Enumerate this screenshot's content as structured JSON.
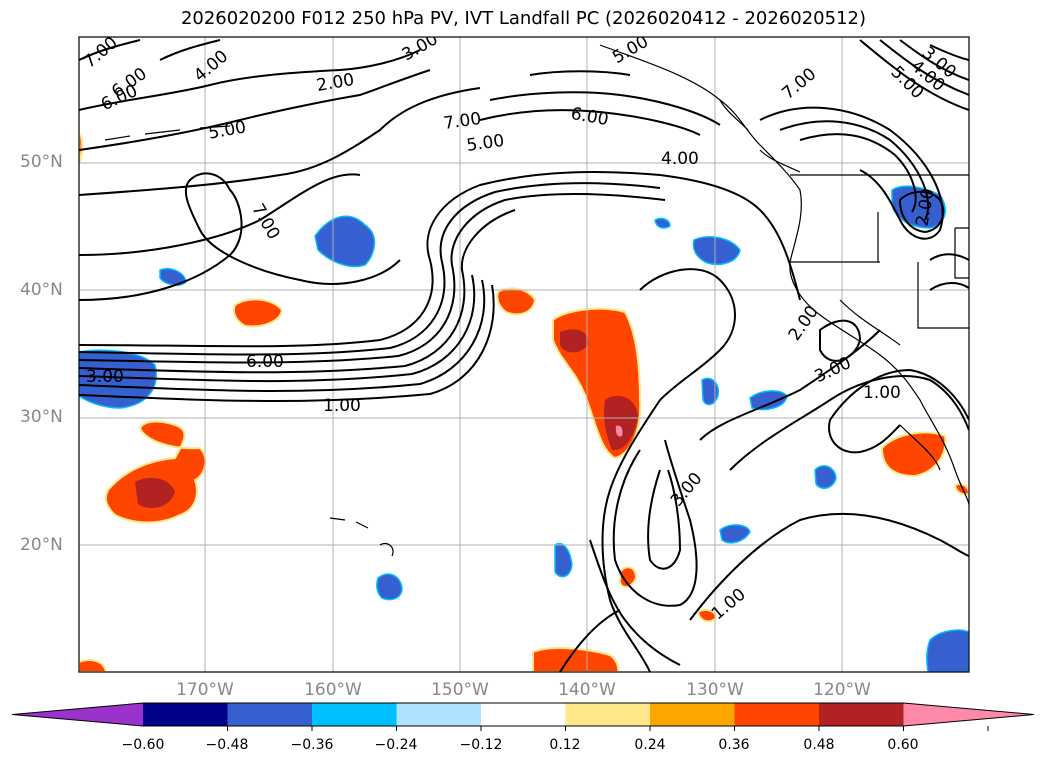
{
  "title": "2026020200 F012 250 hPa PV, IVT Landfall PC (2026020412 - 2026020512)",
  "lat_labels": [
    "50°N",
    "40°N",
    "30°N",
    "20°N"
  ],
  "lon_labels": [
    "170°W",
    "160°W",
    "150°W",
    "140°W",
    "130°W",
    "120°W"
  ],
  "contour_labels": [
    "7.00",
    "6.00",
    "4.00",
    "3.00",
    "2.00",
    "5.00",
    "7.00",
    "5.00",
    "6.00",
    "4.00",
    "7.00",
    "5.00",
    "4.00",
    "3.00",
    "5.00",
    "2.00",
    "6.00",
    "7.00",
    "6.00",
    "3.00",
    "1.00",
    "2.00",
    "3.00",
    "1.00",
    "3.00",
    "1.00"
  ],
  "colorbar": {
    "tick_labels": [
      "−0.60",
      "−0.48",
      "−0.36",
      "−0.24",
      "−0.12",
      "0.12",
      "0.24",
      "0.36",
      "0.48",
      "0.60"
    ],
    "colors": [
      "#9933cc",
      "#00008b",
      "#3660d0",
      "#00bfff",
      "#b0e2ff",
      "#ffffff",
      "#ffe78a",
      "#ffa500",
      "#ff4500",
      "#b22222",
      "#ff89a8"
    ]
  },
  "colors": {
    "grid": "#b0b0b0",
    "contour": "#000000",
    "tick_text": "#888888"
  }
}
